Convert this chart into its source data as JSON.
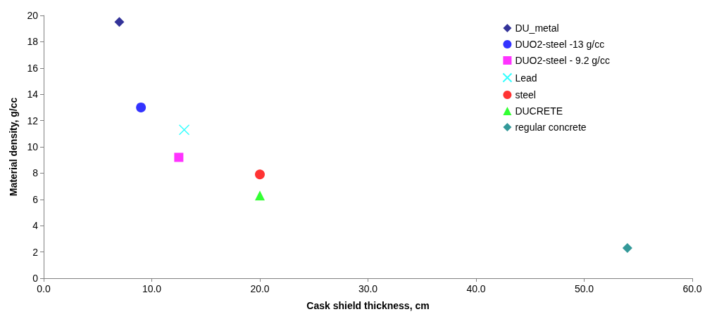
{
  "chart_data": {
    "type": "scatter",
    "xlabel": "Cask shield thickness, cm",
    "ylabel": "Material density, g/cc",
    "xlim": [
      0,
      60
    ],
    "xticks": [
      {
        "value": 0,
        "label": "0.0"
      },
      {
        "value": 10,
        "label": "10.0"
      },
      {
        "value": 20,
        "label": "20.0"
      },
      {
        "value": 30,
        "label": "30.0"
      },
      {
        "value": 40,
        "label": "40.0"
      },
      {
        "value": 50,
        "label": "50.0"
      },
      {
        "value": 60,
        "label": "60.0"
      }
    ],
    "ylim": [
      0,
      20
    ],
    "yticks": [
      0,
      2,
      4,
      6,
      8,
      10,
      12,
      14,
      16,
      18,
      20
    ],
    "grid": false,
    "legend": "top right",
    "series": [
      {
        "name": "DU_metal",
        "color": "#000080",
        "marker": "diamond",
        "x": [
          7.0
        ],
        "values": [
          19.5
        ]
      },
      {
        "name": "DUO2-steel -13 g/cc",
        "color": "#0000ff",
        "marker": "circle",
        "x": [
          9.0
        ],
        "values": [
          13.0
        ]
      },
      {
        "name": "DUO2-steel - 9.2 g/cc",
        "color": "#ff00ff",
        "marker": "square",
        "x": [
          12.5
        ],
        "values": [
          9.2
        ]
      },
      {
        "name": "Lead",
        "color": "#00ffff",
        "marker": "cross",
        "x": [
          13.0
        ],
        "values": [
          11.3
        ]
      },
      {
        "name": "steel",
        "color": "#ff0000",
        "marker": "circle",
        "x": [
          20.0
        ],
        "values": [
          7.9
        ]
      },
      {
        "name": "DUCRETE",
        "color": "#00ff00",
        "marker": "triangle",
        "x": [
          20.0
        ],
        "values": [
          6.3
        ]
      },
      {
        "name": "regular concrete",
        "color": "#008080",
        "marker": "diamond",
        "x": [
          54.0
        ],
        "values": [
          2.3
        ]
      }
    ]
  }
}
